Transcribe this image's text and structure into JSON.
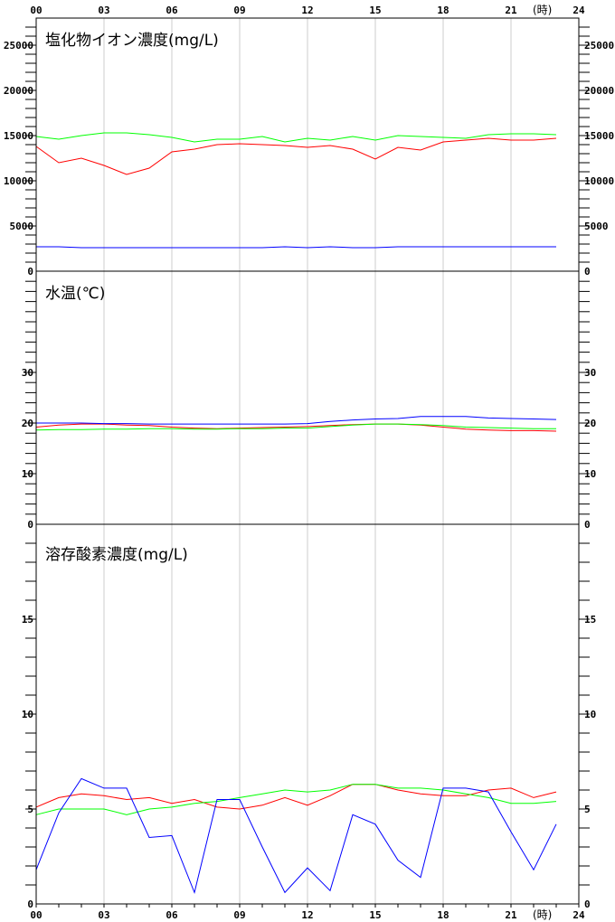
{
  "chart_data": [
    {
      "type": "line",
      "title": "塩化物イオン濃度(mg/L)",
      "ylim": [
        0,
        28000
      ],
      "yticks": [
        0,
        5000,
        10000,
        15000,
        20000,
        25000
      ],
      "x": [
        0,
        1,
        2,
        3,
        4,
        5,
        6,
        7,
        8,
        9,
        10,
        11,
        12,
        13,
        14,
        15,
        16,
        17,
        18,
        19,
        20,
        21,
        22,
        23
      ],
      "series": [
        {
          "color": "#ff0000",
          "values": [
            13800,
            12000,
            12500,
            11700,
            10700,
            11400,
            13200,
            13500,
            14000,
            14100,
            14000,
            13900,
            13700,
            13900,
            13500,
            12400,
            13700,
            13400,
            14300,
            14500,
            14700,
            14500,
            14500,
            14700
          ]
        },
        {
          "color": "#00ff00",
          "values": [
            14900,
            14600,
            15000,
            15300,
            15300,
            15100,
            14800,
            14300,
            14600,
            14600,
            14900,
            14300,
            14700,
            14500,
            14900,
            14500,
            15000,
            14900,
            14800,
            14700,
            15100,
            15200,
            15200,
            15100
          ]
        },
        {
          "color": "#0000ff",
          "values": [
            2700,
            2700,
            2600,
            2600,
            2600,
            2600,
            2600,
            2600,
            2600,
            2600,
            2600,
            2700,
            2600,
            2700,
            2600,
            2600,
            2700,
            2700,
            2700,
            2700,
            2700,
            2700,
            2700,
            2700
          ]
        }
      ]
    },
    {
      "type": "line",
      "title": "水温(℃)",
      "ylim": [
        0,
        50
      ],
      "yticks": [
        0,
        10,
        20,
        30
      ],
      "x": [
        0,
        1,
        2,
        3,
        4,
        5,
        6,
        7,
        8,
        9,
        10,
        11,
        12,
        13,
        14,
        15,
        16,
        17,
        18,
        19,
        20,
        21,
        22,
        23
      ],
      "series": [
        {
          "color": "#ff0000",
          "values": [
            19.2,
            19.6,
            19.8,
            19.8,
            19.6,
            19.5,
            19.2,
            19.0,
            18.9,
            19.0,
            19.1,
            19.2,
            19.3,
            19.5,
            19.7,
            19.8,
            19.8,
            19.6,
            19.2,
            18.8,
            18.6,
            18.5,
            18.5,
            18.4
          ]
        },
        {
          "color": "#00ff00",
          "values": [
            18.6,
            18.7,
            18.7,
            18.8,
            18.8,
            18.9,
            18.9,
            18.8,
            18.8,
            18.9,
            18.9,
            19.0,
            19.0,
            19.3,
            19.6,
            19.8,
            19.8,
            19.7,
            19.5,
            19.2,
            19.1,
            19.0,
            18.9,
            18.9
          ]
        },
        {
          "color": "#0000ff",
          "values": [
            20.0,
            20.0,
            20.0,
            19.9,
            19.9,
            19.8,
            19.8,
            19.8,
            19.8,
            19.8,
            19.8,
            19.8,
            19.9,
            20.3,
            20.6,
            20.8,
            20.9,
            21.3,
            21.3,
            21.3,
            21.0,
            20.9,
            20.8,
            20.7
          ]
        }
      ]
    },
    {
      "type": "line",
      "title": "溶存酸素濃度(mg/L)",
      "ylim": [
        0,
        20
      ],
      "yticks": [
        0,
        5,
        10,
        15
      ],
      "x": [
        0,
        1,
        2,
        3,
        4,
        5,
        6,
        7,
        8,
        9,
        10,
        11,
        12,
        13,
        14,
        15,
        16,
        17,
        18,
        19,
        20,
        21,
        22,
        23
      ],
      "series": [
        {
          "color": "#ff0000",
          "values": [
            5.1,
            5.6,
            5.8,
            5.7,
            5.5,
            5.6,
            5.3,
            5.5,
            5.1,
            5.0,
            5.2,
            5.6,
            5.2,
            5.7,
            6.3,
            6.3,
            6.0,
            5.8,
            5.7,
            5.7,
            6.0,
            6.1,
            5.6,
            5.9
          ]
        },
        {
          "color": "#00ff00",
          "values": [
            4.7,
            5.0,
            5.0,
            5.0,
            4.7,
            5.0,
            5.1,
            5.3,
            5.4,
            5.6,
            5.8,
            6.0,
            5.9,
            6.0,
            6.3,
            6.3,
            6.1,
            6.1,
            6.0,
            5.8,
            5.6,
            5.3,
            5.3,
            5.4
          ]
        },
        {
          "color": "#0000ff",
          "values": [
            1.8,
            4.8,
            6.6,
            6.1,
            6.1,
            3.5,
            3.6,
            0.6,
            5.5,
            5.5,
            3.0,
            0.6,
            1.9,
            0.7,
            4.7,
            4.2,
            2.3,
            1.4,
            6.1,
            6.1,
            5.9,
            3.8,
            1.8,
            4.2
          ]
        }
      ]
    }
  ],
  "x_axis": {
    "labels": [
      "00",
      "03",
      "06",
      "09",
      "12",
      "15",
      "18",
      "21",
      "24"
    ],
    "unit": "(時)"
  },
  "colors": {
    "grid": "#cccccc",
    "axis": "#000000"
  }
}
